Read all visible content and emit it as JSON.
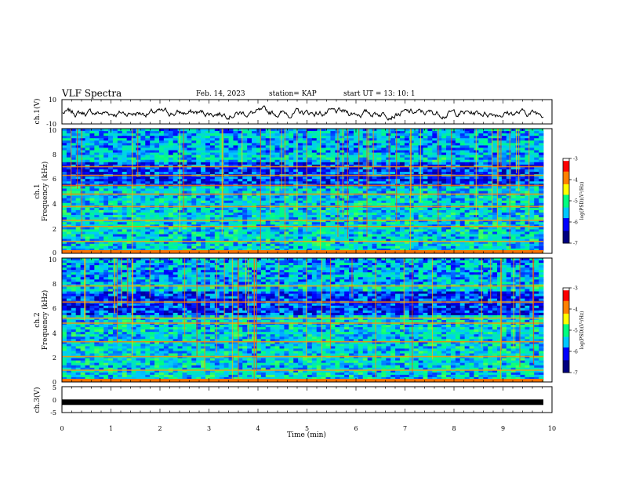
{
  "header": {
    "title": "VLF Spectra",
    "date": "Feb. 14, 2023",
    "station": "station= KAP",
    "start_ut": "start  UT =   13: 10: 1"
  },
  "chart_data": [
    {
      "type": "line",
      "panel": "ch1-waveform",
      "ylabel": "ch.1(V)",
      "ylim": [
        -10,
        10
      ],
      "yticks": [
        "10",
        "-10"
      ],
      "xlim": [
        0,
        10
      ],
      "x_unit": "min",
      "description_values": "noisy waveform oscillating roughly between -6 and +4 V",
      "color": "#000000"
    },
    {
      "type": "heatmap",
      "panel": "ch1-spectrogram",
      "ylabel": "ch.1",
      "ylabel2": "Frequency (kHz)",
      "ylim": [
        0,
        10
      ],
      "yticks": [
        "0",
        "2",
        "4",
        "6",
        "8",
        "10"
      ],
      "xlim": [
        0,
        10
      ],
      "colorbar": {
        "label": "log(PSD)(V²/Hz)",
        "range": [
          -7,
          -3
        ],
        "ticks": [
          "-3",
          "-4",
          "-5",
          "-6",
          "-7"
        ],
        "colors": [
          "#000080",
          "#0000ff",
          "#00c8ff",
          "#00ff80",
          "#ffff00",
          "#ff8000",
          "#ff0000",
          "#ffffff"
        ]
      }
    },
    {
      "type": "heatmap",
      "panel": "ch2-spectrogram",
      "ylabel": "ch.2",
      "ylabel2": "Frequency (kHz)",
      "ylim": [
        0,
        10
      ],
      "yticks": [
        "0",
        "2",
        "4",
        "6",
        "8",
        "10"
      ],
      "xlim": [
        0,
        10
      ],
      "colorbar": {
        "label": "log(PSD)(V²/Hz)",
        "range": [
          -7,
          -3
        ],
        "ticks": [
          "-3",
          "-4",
          "-5",
          "-6",
          "-7"
        ],
        "colors": [
          "#000080",
          "#0000ff",
          "#00c8ff",
          "#00ff80",
          "#ffff00",
          "#ff8000",
          "#ff0000",
          "#ffffff"
        ]
      }
    },
    {
      "type": "line",
      "panel": "ch3-waveform",
      "ylabel": "ch.3(V)",
      "ylim": [
        -5,
        5
      ],
      "yticks": [
        "5",
        "0",
        "-5"
      ],
      "xlim": [
        0,
        10
      ],
      "xlabel": "Time (min)",
      "xticks": [
        "0",
        "1",
        "2",
        "3",
        "4",
        "5",
        "6",
        "7",
        "8",
        "9",
        "10"
      ],
      "values_note": "flat thick band near -1 V",
      "level": -1,
      "color": "#000000"
    }
  ]
}
